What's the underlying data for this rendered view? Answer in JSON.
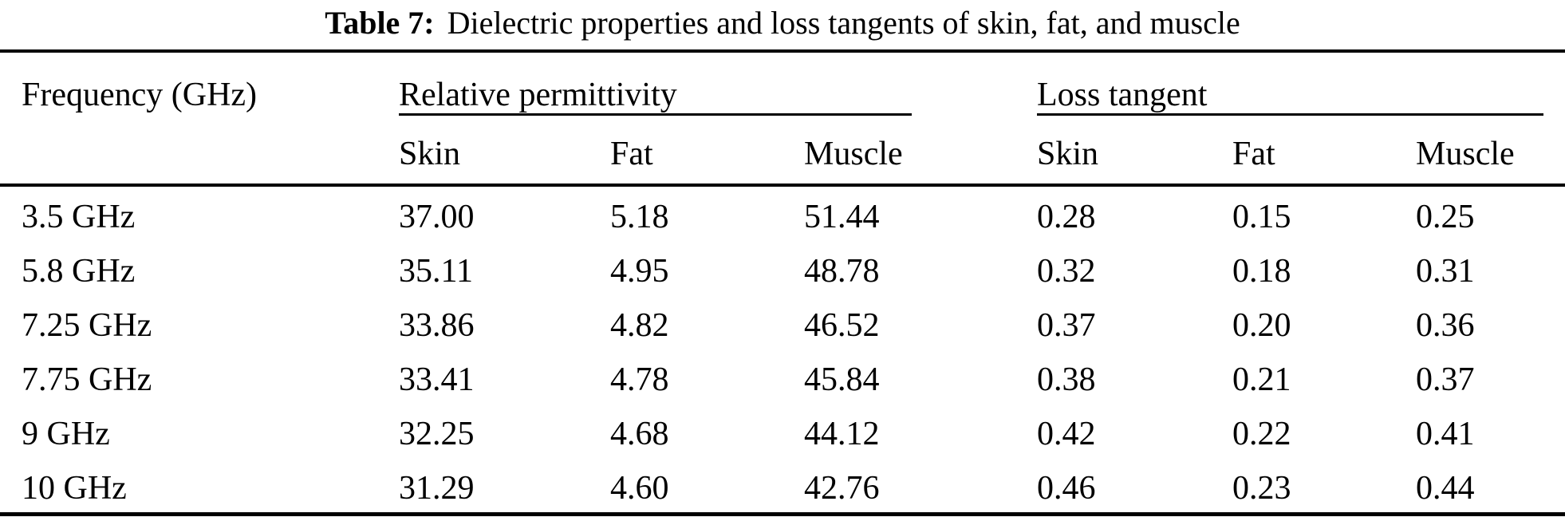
{
  "page": {
    "background": "#ffffff",
    "text_color": "#000000",
    "rule_color": "#000000"
  },
  "title": {
    "label": "Table 7:",
    "text": "Dielectric properties and loss tangents of skin, fat, and muscle"
  },
  "table": {
    "header": {
      "frequency_label": "Frequency (GHz)",
      "group1_label": "Relative permittivity",
      "group2_label": "Loss tangent",
      "sub_labels": [
        "Skin",
        "Fat",
        "Muscle",
        "Skin",
        "Fat",
        "Muscle"
      ]
    },
    "rows": [
      {
        "freq": "3.5 GHz",
        "values": [
          "37.00",
          "5.18",
          "51.44",
          "0.28",
          "0.15",
          "0.25"
        ]
      },
      {
        "freq": "5.8 GHz",
        "values": [
          "35.11",
          "4.95",
          "48.78",
          "0.32",
          "0.18",
          "0.31"
        ]
      },
      {
        "freq": "7.25 GHz",
        "values": [
          "33.86",
          "4.82",
          "46.52",
          "0.37",
          "0.20",
          "0.36"
        ]
      },
      {
        "freq": "7.75 GHz",
        "values": [
          "33.41",
          "4.78",
          "45.84",
          "0.38",
          "0.21",
          "0.37"
        ]
      },
      {
        "freq": "9 GHz",
        "values": [
          "32.25",
          "4.68",
          "44.12",
          "0.42",
          "0.22",
          "0.41"
        ]
      },
      {
        "freq": "10 GHz",
        "values": [
          "31.29",
          "4.60",
          "42.76",
          "0.46",
          "0.23",
          "0.44"
        ]
      }
    ]
  }
}
